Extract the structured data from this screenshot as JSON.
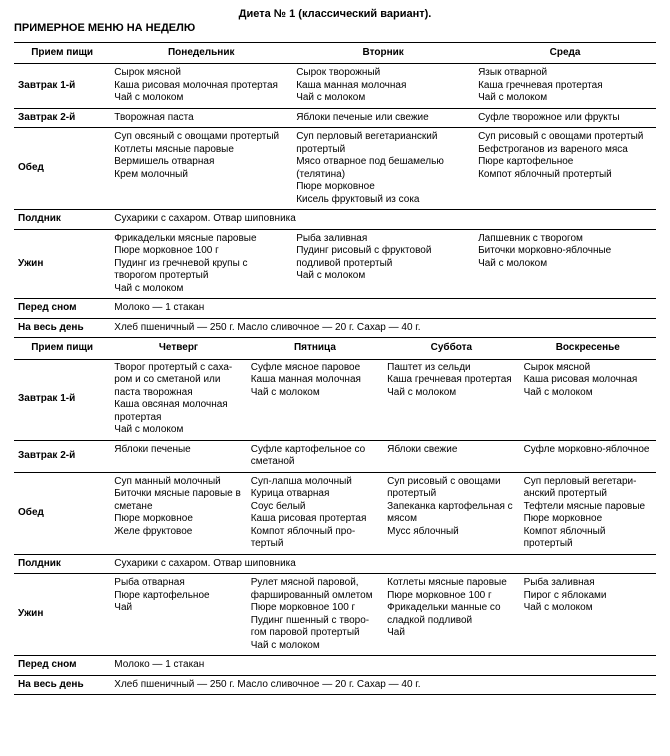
{
  "title": "Диета № 1 (классический вариант).",
  "subtitle": "ПРИМЕРНОЕ МЕНЮ НА НЕДЕЛЮ",
  "style": {
    "background_color": "#ffffff",
    "text_color": "#000000",
    "border_color": "#000000",
    "font_family": "Arial",
    "base_fontsize_pt": 8,
    "header_fontsize_pt": 8,
    "title_fontsize_pt": 9,
    "col_widths_pct": [
      15,
      28.333,
      28.333,
      28.333
    ]
  },
  "upper": {
    "header": {
      "meal": "Прием пищи",
      "d1": "Понедельник",
      "d2": "Вторник",
      "d3": "Среда"
    },
    "rows": {
      "bf1": {
        "label": "Завтрак 1-й",
        "d1": "Сырок мясной\nКаша рисовая молочная про­тертая\nЧай с молоком",
        "d2": "Сырок творожный\nКаша манная молочная\nЧай с молоком",
        "d3": "Язык отварной\nКаша гречневая протертая\nЧай с молоком"
      },
      "bf2": {
        "label": "Завтрак 2-й",
        "d1": "Творожная паста",
        "d2": "Яблоки печеные или свежие",
        "d3": "Суфле творожное или фрукты"
      },
      "lunch": {
        "label": "Обед",
        "d1": "Суп овсяный с овощами про­тертый\nКотлеты мясные паровые\nВермишель отварная\nКрем молочный",
        "d2": "Суп перловый вегетариан­ский протертый\nМясо отварное под бешаме­лью (телятина)\nПюре морковное\nКисель фруктовый из сока",
        "d3": "Суп рисовый с овощами про­тертый\nБефстроганов из вареного мяса\nПюре картофельное\nКомпот яблочный протертый"
      },
      "snack": {
        "label": "Полдник",
        "span": "Сухарики с сахаром. Отвар шиповника"
      },
      "dinner": {
        "label": "Ужин",
        "d1": "Фрикадельки мясные паро­вые\nПюре морковное 100 г\nПудинг из гречневой крупы с творогом протертый\nЧай с молоком",
        "d2": "Рыба заливная\nПудинг рисовый с фруктовой подливой протертый\nЧай с молоком",
        "d3": "Лапшевник с творогом\nБиточки морковно-яблочные\nЧай с молоком"
      },
      "bed": {
        "label": "Перед сном",
        "span": "Молоко — 1 стакан"
      },
      "allday": {
        "label": "На весь день",
        "span": "Хлеб пшеничный — 250 г. Масло сливочное — 20 г. Сахар — 40 г."
      }
    }
  },
  "lower": {
    "header": {
      "meal": "Прием пищи",
      "d1": "Четверг",
      "d2": "Пятница",
      "d3": "Суббота",
      "d4": "Воскресенье"
    },
    "rows": {
      "bf1": {
        "label": "Завтрак 1-й",
        "d1": "Творог протертый с саха­ром и со сметаной или паста творожная\nКаша овсяная молочная протертая\nЧай с молоком",
        "d2": "Суфле мясное паровое\nКаша манная молочная\nЧай с молоком",
        "d3": "Паштет из сельди\nКаша гречневая про­тертая\nЧай с молоком",
        "d4": "Сырок мясной\nКаша рисовая молочная\nЧай с молоком"
      },
      "bf2": {
        "label": "Завтрак 2-й",
        "d1": "Яблоки печеные",
        "d2": "Суфле картофельное со сметаной",
        "d3": "Яблоки свежие",
        "d4": "Суфле морковно-яблоч­ное"
      },
      "lunch": {
        "label": "Обед",
        "d1": "Суп манный молочный\nБиточки мясные паро­вые в сметане\nПюре морковное\nЖеле фруктовое",
        "d2": "Суп-лапша молочный\nКурица отварная\nСоус белый\nКаша рисовая протертая\nКомпот яблочный про­тертый",
        "d3": "Суп рисовый с овощами протертый\nЗапеканка картофельная с мясом\nМусс яблочный",
        "d4": "Суп перловый вегетари­анский протертый\nТефтели мясные паровые\nПюре морковное\nКомпот яблочный протертый"
      },
      "snack": {
        "label": "Полдник",
        "span": "Сухарики с сахаром. Отвар шиповника"
      },
      "dinner": {
        "label": "Ужин",
        "d1": "Рыба отварная\nПюре картофельное\nЧай",
        "d2": "Рулет мясной паровой, фаршированный омлетом\nПюре морковное 100 г\nПудинг пшенный с творо­гом паровой протертый\nЧай с молоком",
        "d3": "Котлеты мясные паровые\nПюре морковное 100 г\nФрикадельки манные со сладкой подливой\nЧай",
        "d4": "Рыба заливная\nПирог с яблоками\nЧай с молоком"
      },
      "bed": {
        "label": "Перед сном",
        "span": "Молоко — 1 стакан"
      },
      "allday": {
        "label": "На весь день",
        "span": "Хлеб пшеничный — 250 г. Масло сливочное — 20 г. Сахар — 40 г."
      }
    }
  }
}
